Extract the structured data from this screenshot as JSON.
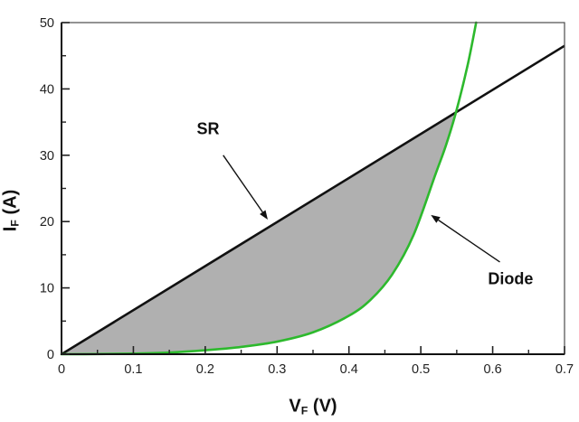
{
  "chart_data": {
    "type": "line",
    "title": "",
    "background_color": "#ffffff",
    "xlabel": {
      "symbol": "V",
      "subscript": "F",
      "unit": "(V)"
    },
    "ylabel": {
      "symbol": "I",
      "subscript": "F",
      "unit": "(A)"
    },
    "x_axis": {
      "min": 0,
      "max": 0.7,
      "major_ticks": [
        0,
        0.1,
        0.2,
        0.3,
        0.4,
        0.5,
        0.6,
        0.7
      ],
      "tick_labels": [
        "0",
        "0.1",
        "0.2",
        "0.3",
        "0.4",
        "0.5",
        "0.6",
        "0.7"
      ],
      "minor_ticks": [
        0.05,
        0.15,
        0.25,
        0.35,
        0.45,
        0.55,
        0.65
      ]
    },
    "y_axis": {
      "min": 0,
      "max": 50,
      "major_ticks": [
        0,
        10,
        20,
        30,
        40,
        50
      ],
      "tick_labels": [
        "0",
        "10",
        "20",
        "30",
        "40",
        "50"
      ],
      "minor_ticks": [
        5,
        15,
        25,
        35,
        45
      ]
    },
    "grid": false,
    "series": [
      {
        "name": "SR",
        "color": "#111111",
        "width": 2.6,
        "points": [
          [
            0,
            0
          ],
          [
            0.7,
            46.5
          ]
        ]
      },
      {
        "name": "Diode",
        "color": "#2db92d",
        "width": 2.6,
        "points": [
          [
            0,
            0
          ],
          [
            0.05,
            0.02
          ],
          [
            0.1,
            0.1
          ],
          [
            0.15,
            0.25
          ],
          [
            0.2,
            0.6
          ],
          [
            0.25,
            1.1
          ],
          [
            0.3,
            1.9
          ],
          [
            0.35,
            3.3
          ],
          [
            0.4,
            5.8
          ],
          [
            0.43,
            8.2
          ],
          [
            0.46,
            12
          ],
          [
            0.49,
            18
          ],
          [
            0.52,
            27
          ],
          [
            0.535,
            31.5
          ],
          [
            0.549,
            36.5
          ],
          [
            0.565,
            43.5
          ],
          [
            0.577,
            50
          ]
        ]
      }
    ],
    "fill_between": {
      "upper": "SR",
      "lower": "Diode",
      "from": 0,
      "to": 0.549,
      "crossing_point": [
        0.549,
        36.5
      ],
      "color": "#b0b0b0"
    },
    "annotations": [
      {
        "label": "SR",
        "text_pos": [
          0.204,
          33.9
        ],
        "arrow_from": [
          0.225,
          30.0
        ],
        "arrow_to": [
          0.287,
          20.3
        ]
      },
      {
        "label": "Diode",
        "text_pos": [
          0.625,
          11.3
        ],
        "arrow_from": [
          0.61,
          13.9
        ],
        "arrow_to": [
          0.514,
          21.0
        ]
      }
    ]
  }
}
